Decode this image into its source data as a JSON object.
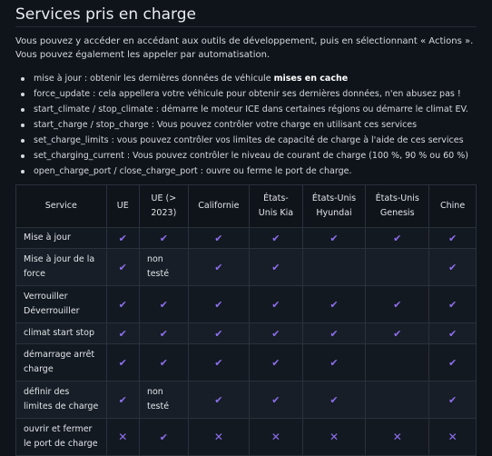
{
  "title": "Services pris en charge",
  "intro": "Vous pouvez y accéder en accédant aux outils de développement, puis en sélectionnant « Actions ». Vous pouvez également les appeler par automatisation.",
  "bullets": [
    {
      "text": "mise à jour : obtenir les dernières données de véhicule ",
      "bold": "mises en cache"
    },
    {
      "text": "force_update : cela appellera votre véhicule pour obtenir ses dernières données, n'en abusez pas !"
    },
    {
      "text": "start_climate / stop_climate : démarre le moteur ICE dans certaines régions ou démarre le climat EV."
    },
    {
      "text": "start_charge / stop_charge : Vous pouvez contrôler votre charge en utilisant ces services"
    },
    {
      "text": "set_charge_limits : vous pouvez contrôler vos limites de capacité de charge à l'aide de ces services"
    },
    {
      "text": "set_charging_current : Vous pouvez contrôler le niveau de courant de charge (100 %, 90 % ou 60 %)"
    },
    {
      "text": "open_charge_port / close_charge_port : ouvre ou ferme le port de charge."
    }
  ],
  "table": {
    "headers": [
      {
        "line1": "Service",
        "line2": ""
      },
      {
        "line1": "UE",
        "line2": ""
      },
      {
        "line1": "UE (>",
        "line2": "2023)"
      },
      {
        "line1": "Californie",
        "line2": ""
      },
      {
        "line1": "États-",
        "line2": "Unis Kia"
      },
      {
        "line1": "États-Unis",
        "line2": "Hyundai"
      },
      {
        "line1": "États-Unis",
        "line2": "Genesis"
      },
      {
        "line1": "Chine",
        "line2": ""
      }
    ],
    "rows": [
      {
        "service": "Mise à jour",
        "cells": [
          "check",
          "check",
          "check",
          "check",
          "check",
          "check",
          "check"
        ]
      },
      {
        "service": "Mise à jour de la force",
        "cells": [
          "check",
          "note",
          "check",
          "check",
          "",
          "",
          "check"
        ]
      },
      {
        "service": "Verrouiller Déverrouiller",
        "cells": [
          "check",
          "check",
          "check",
          "check",
          "check",
          "check",
          "check"
        ]
      },
      {
        "service": "climat start stop",
        "cells": [
          "check",
          "check",
          "check",
          "check",
          "check",
          "check",
          "check"
        ]
      },
      {
        "service": "démarrage arrêt charge",
        "cells": [
          "check",
          "check",
          "check",
          "check",
          "check",
          "",
          "check"
        ]
      },
      {
        "service": "définir des limites de charge",
        "cells": [
          "check",
          "note",
          "check",
          "check",
          "check",
          "",
          "check"
        ]
      },
      {
        "service": "ouvrir et fermer le port de charge",
        "cells": [
          "cross",
          "check",
          "cross",
          "cross",
          "cross",
          "cross",
          "cross"
        ]
      }
    ],
    "note_text": "non testé",
    "check_glyph": "✔",
    "cross_glyph": "✕"
  },
  "colors": {
    "accent": "#8e6ff0",
    "background": "#0f141b"
  }
}
